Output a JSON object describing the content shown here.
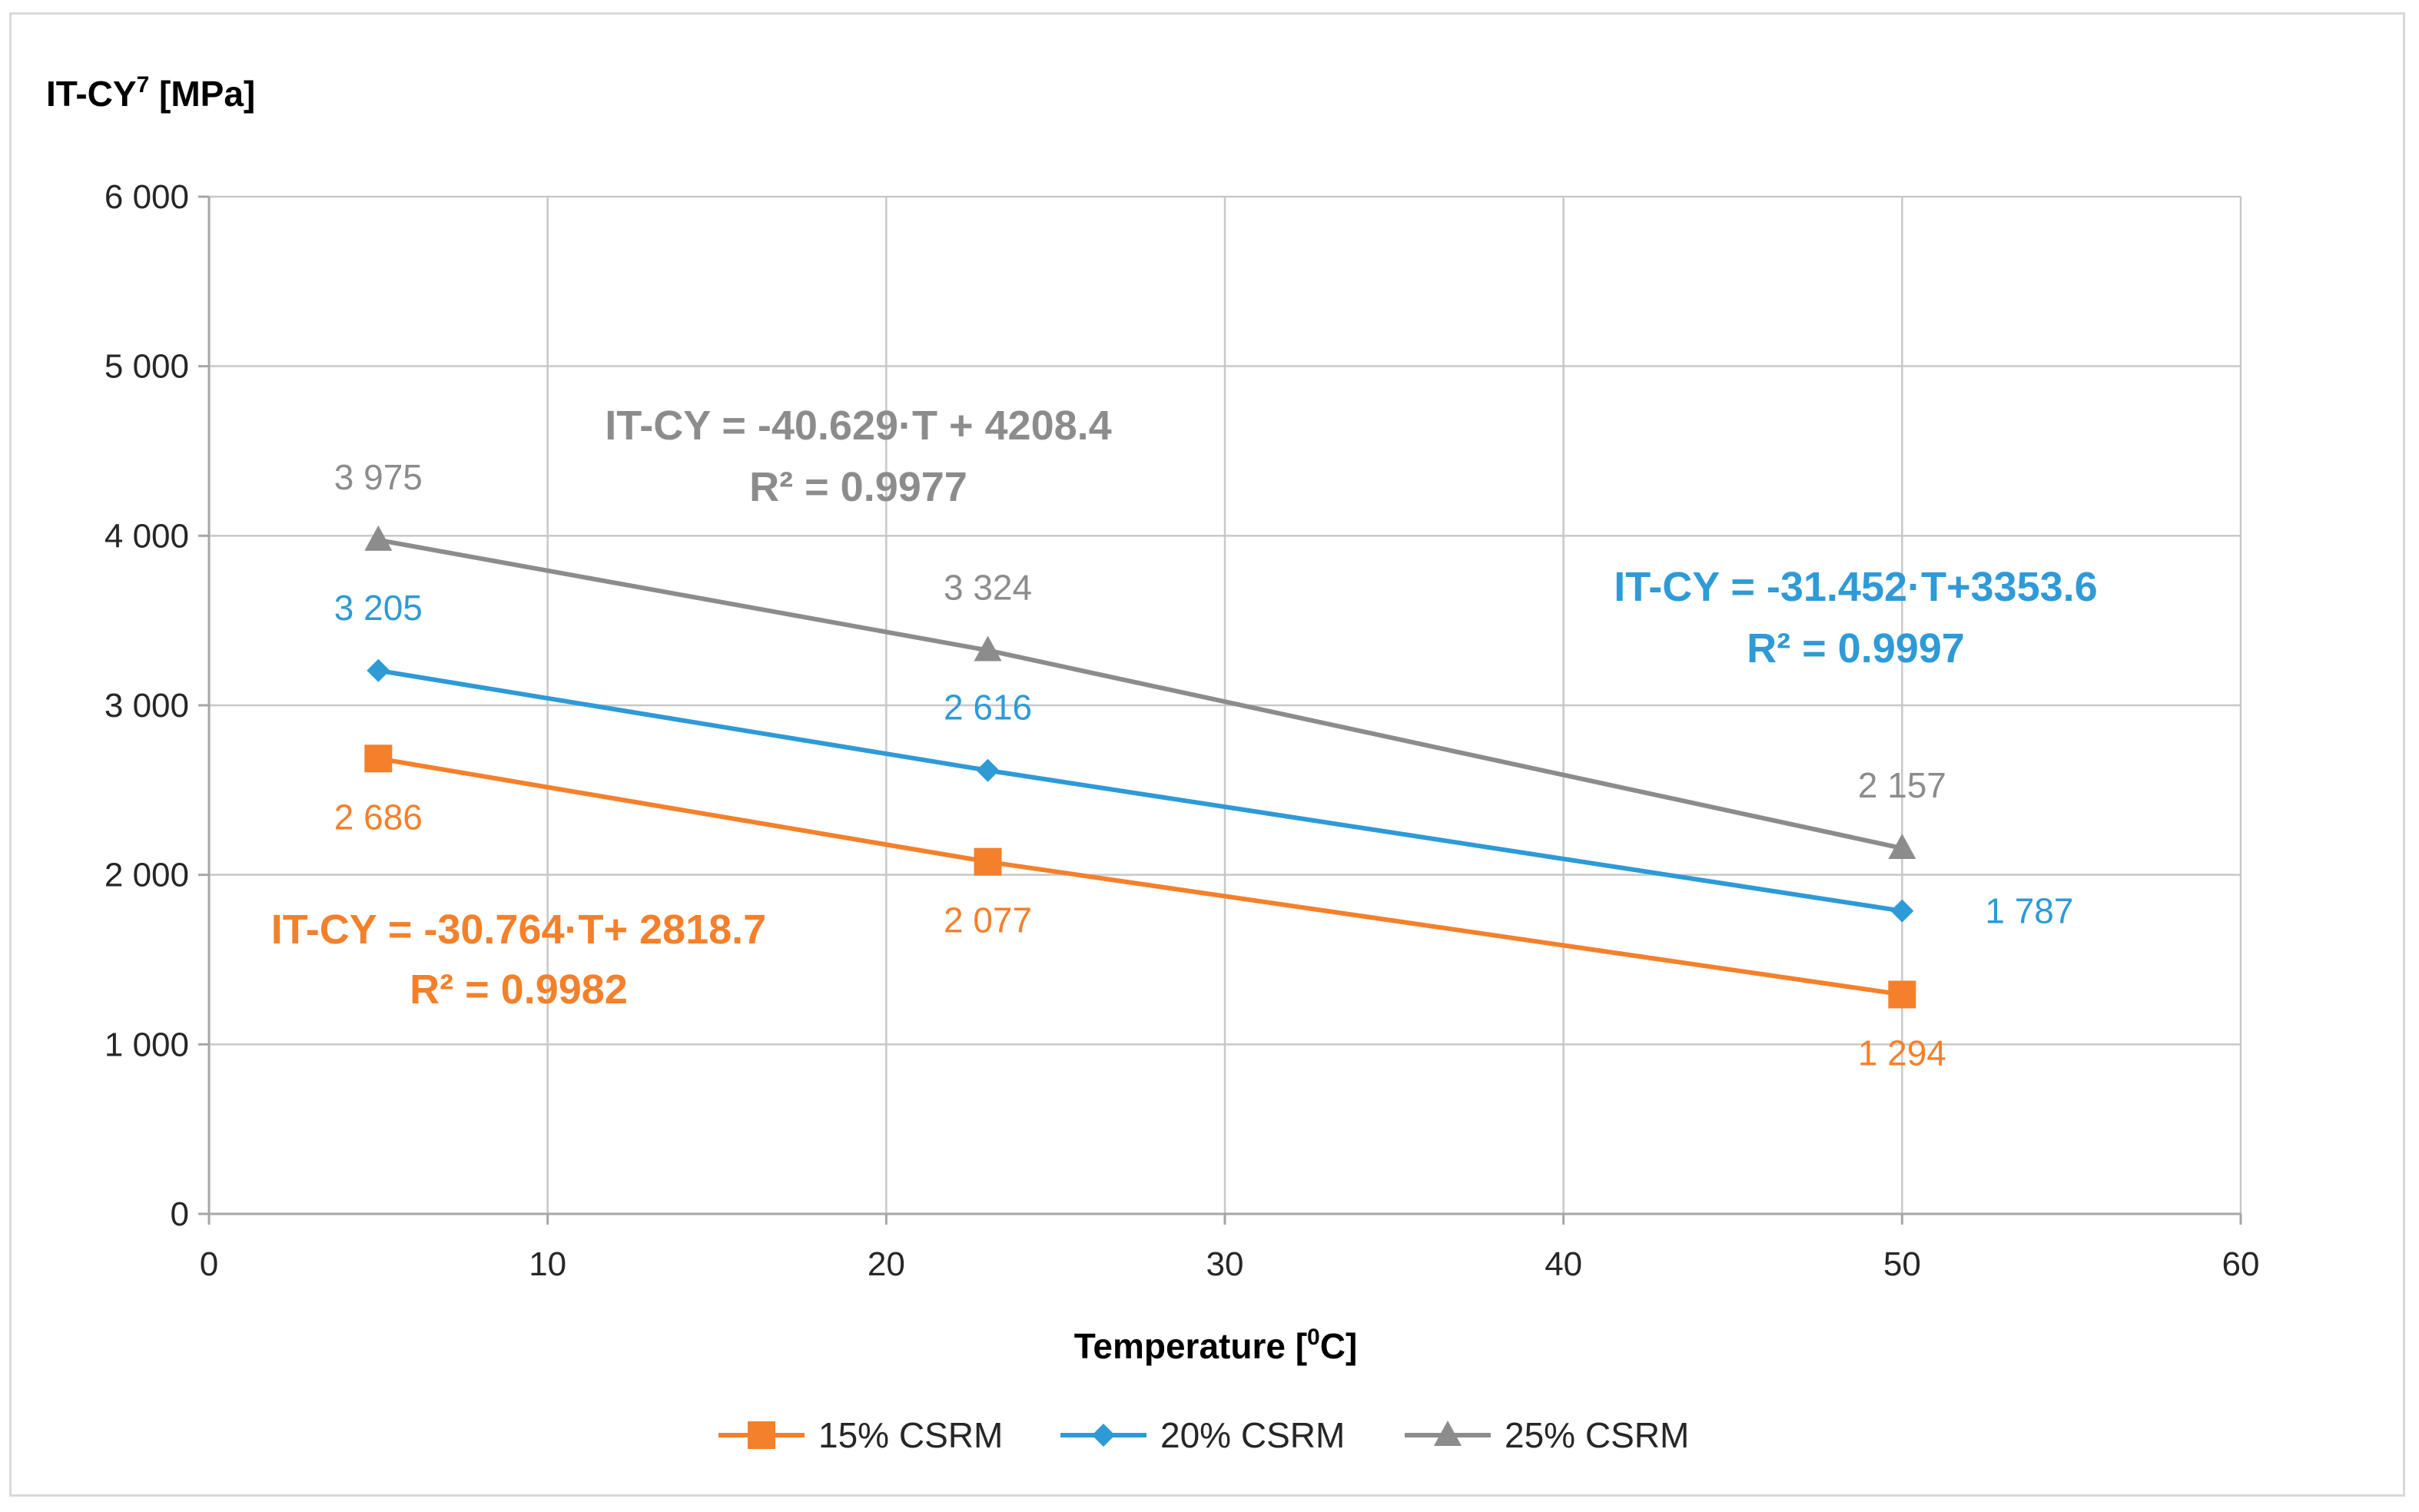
{
  "chart_data": {
    "type": "line",
    "ylabel": "IT-CY",
    "ylabel_superscript": "7",
    "ylabel_unit": "[MPa]",
    "xlabel_prefix": "Temperature [",
    "xlabel_superscript": "0",
    "xlabel_suffix": "C]",
    "xlim": [
      0,
      60
    ],
    "ylim": [
      0,
      6000
    ],
    "x_ticks": [
      0,
      10,
      20,
      30,
      40,
      50,
      60
    ],
    "x_tick_labels": [
      "0",
      "10",
      "20",
      "30",
      "40",
      "50",
      "60"
    ],
    "y_ticks": [
      0,
      1000,
      2000,
      3000,
      4000,
      5000,
      6000
    ],
    "y_tick_labels": [
      "0",
      "1 000",
      "2 000",
      "3 000",
      "4 000",
      "5 000",
      "6 000"
    ],
    "grid": true,
    "legend_position": "bottom",
    "series": [
      {
        "name": "15% CSRM",
        "color": "#f4802b",
        "marker": "square",
        "x": [
          5,
          23,
          50
        ],
        "y": [
          2686,
          2077,
          1294
        ],
        "labels": [
          "2 686",
          "2 077",
          "1 294"
        ],
        "equation": "IT-CY = -30.764·T+ 2818.7",
        "r2": "R² = 0.9982"
      },
      {
        "name": "20% CSRM",
        "color": "#2e9ad6",
        "marker": "diamond",
        "x": [
          5,
          23,
          50
        ],
        "y": [
          3205,
          2616,
          1787
        ],
        "labels": [
          "3 205",
          "2 616",
          "1 787"
        ],
        "equation": "IT-CY = -31.452·T+3353.6",
        "r2": "R² = 0.9997"
      },
      {
        "name": "25% CSRM",
        "color": "#8c8c8c",
        "marker": "triangle",
        "x": [
          5,
          23,
          50
        ],
        "y": [
          3975,
          3324,
          2157
        ],
        "labels": [
          "3 975",
          "3 324",
          "2 157"
        ],
        "equation": "IT-CY = -40.629·T  + 4208.4",
        "r2": "R² = 0.9977"
      }
    ]
  }
}
